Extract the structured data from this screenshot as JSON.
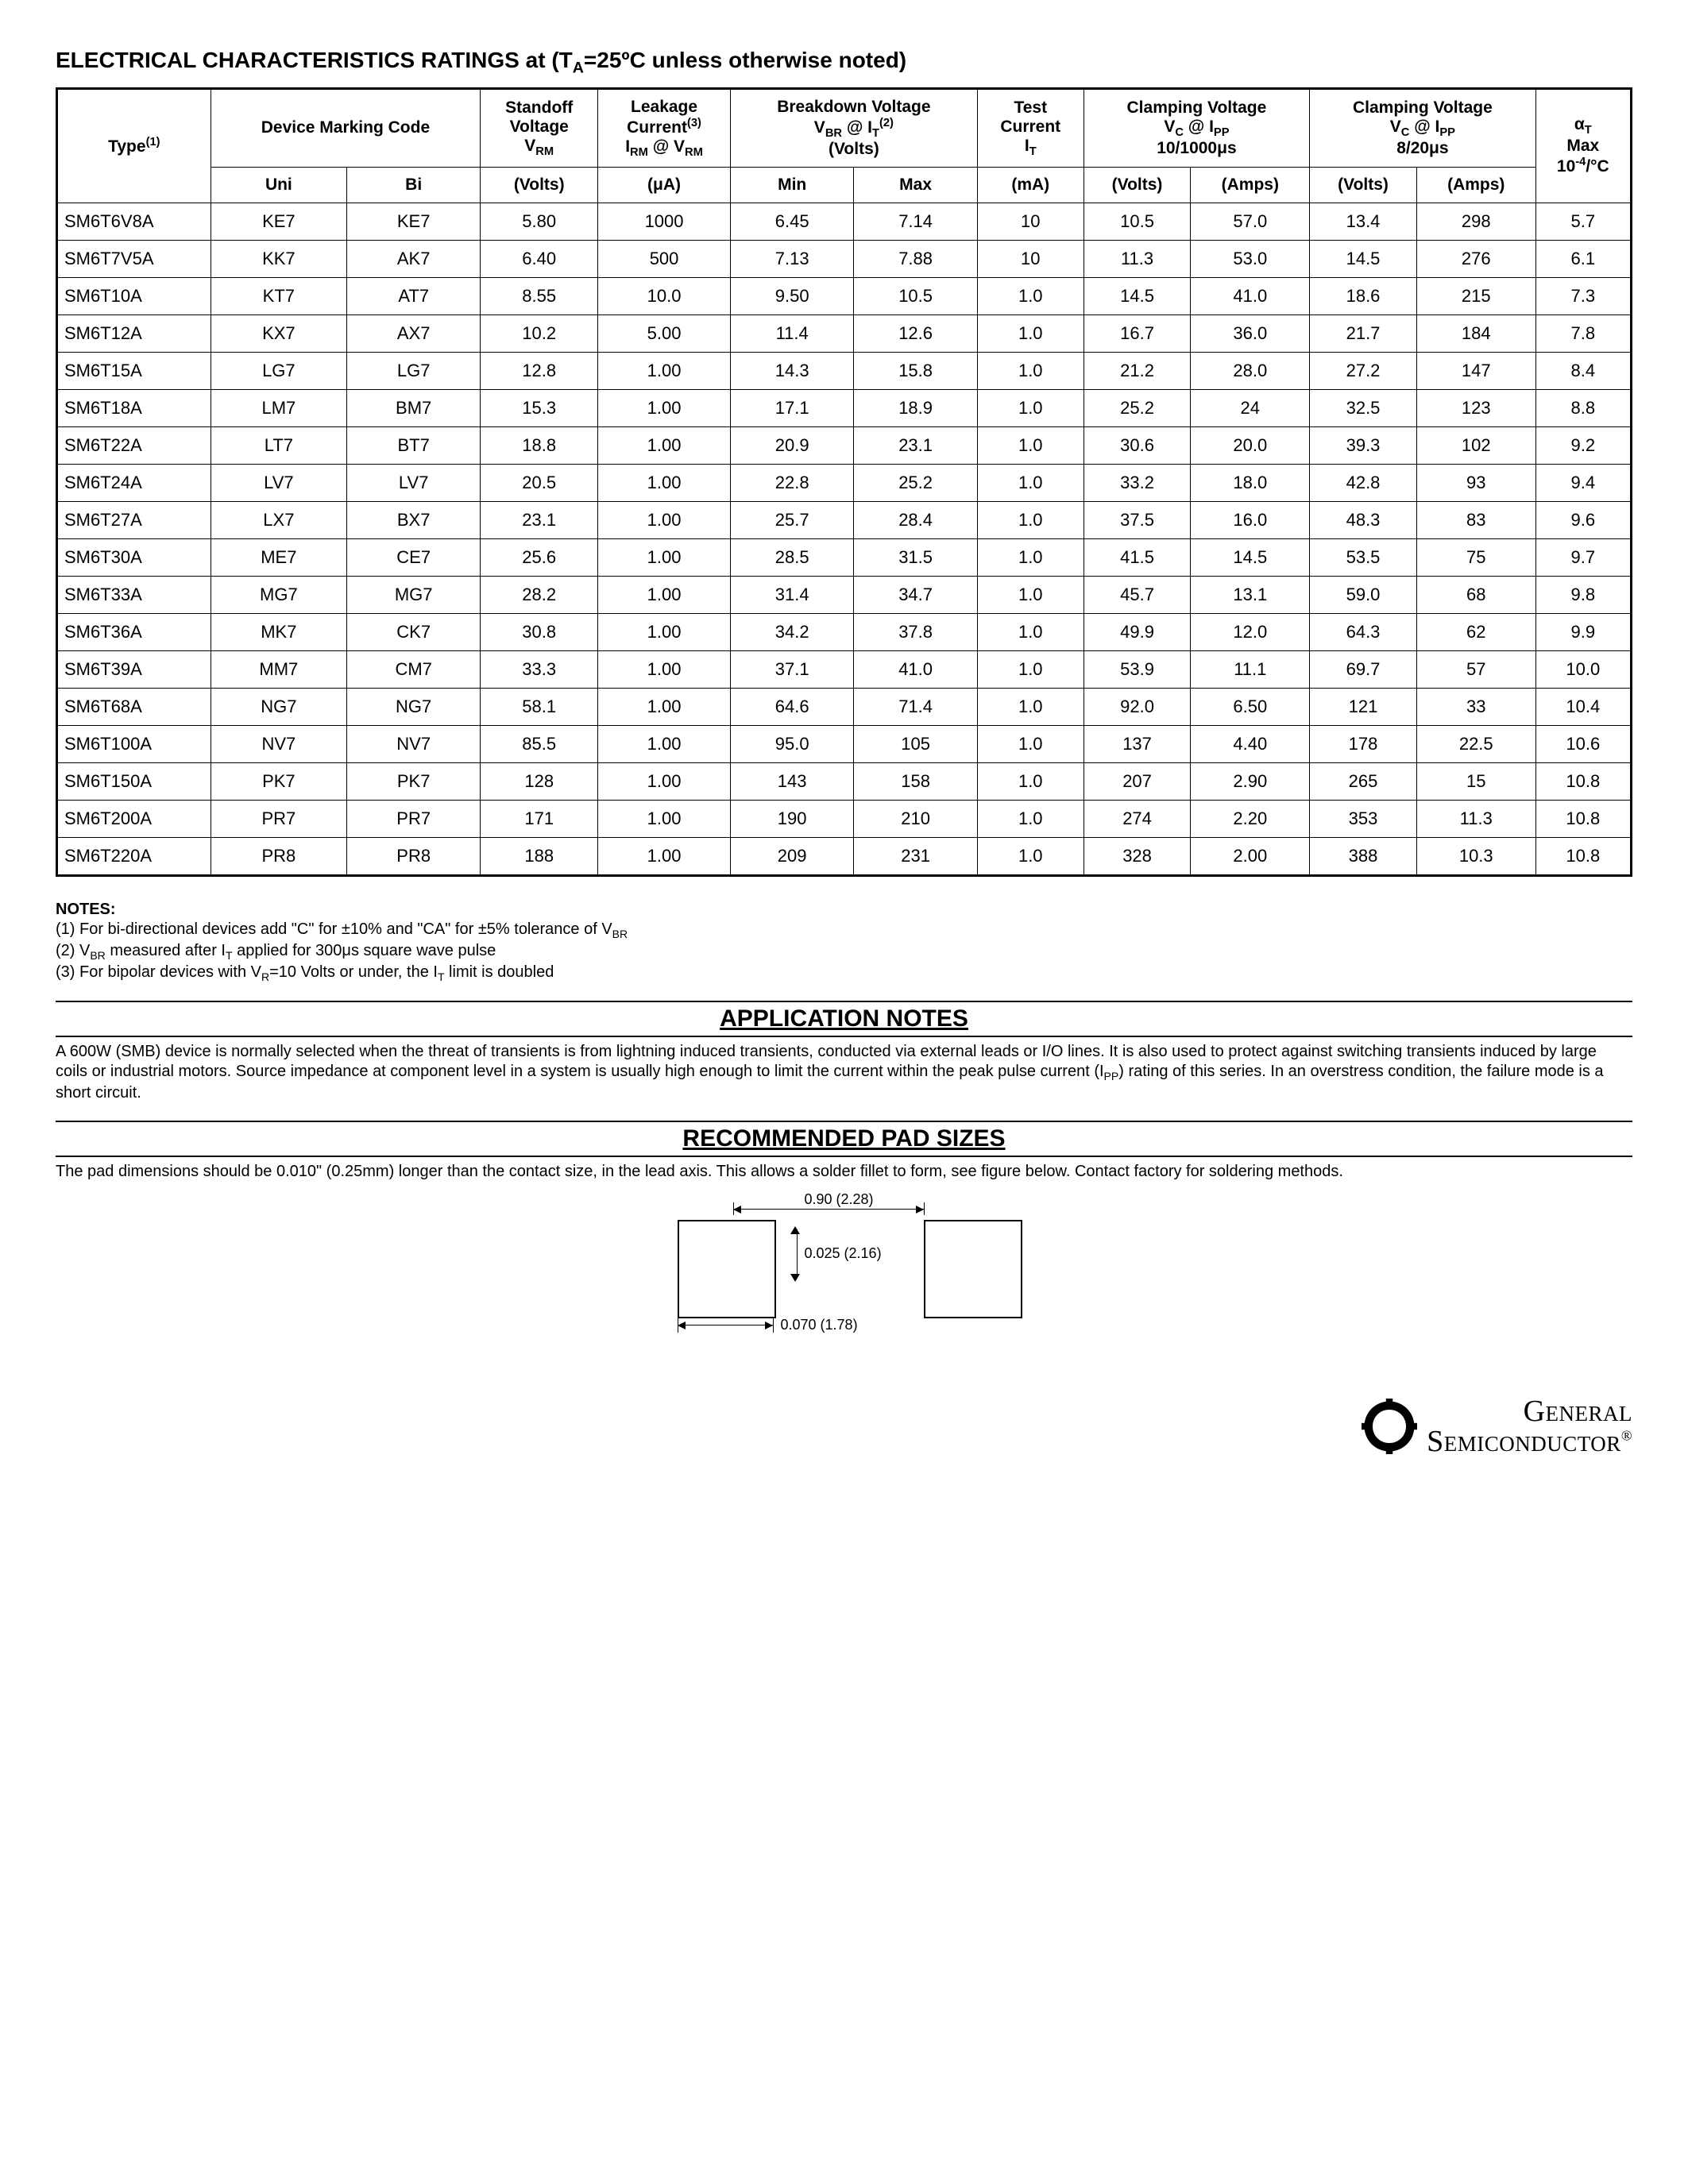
{
  "title_prefix": "ELECTRICAL CHARACTERISTICS RATINGS at (T",
  "title_sub": "A",
  "title_suffix": "=25ºC unless otherwise noted)",
  "headers": {
    "type": "Type",
    "type_sup": "(1)",
    "marking": "Device Marking Code",
    "standoff_l1": "Standoff",
    "standoff_l2": "Voltage",
    "standoff_l3_pre": "V",
    "standoff_l3_sub": "RM",
    "leakage_l1": "Leakage",
    "leakage_l2_pre": "Current",
    "leakage_l2_sup": "(3)",
    "leakage_l3_pre": "I",
    "leakage_l3_sub1": "RM",
    "leakage_l3_mid": " @ V",
    "leakage_l3_sub2": "RM",
    "breakdown_l1": "Breakdown Voltage",
    "breakdown_l2_pre": "V",
    "breakdown_l2_sub1": "BR",
    "breakdown_l2_mid": " @ I",
    "breakdown_l2_sub2": "T",
    "breakdown_l2_sup": "(2)",
    "breakdown_l3": "(Volts)",
    "test_l1": "Test",
    "test_l2": "Current",
    "test_l3_pre": "I",
    "test_l3_sub": "T",
    "clamp1_l1": "Clamping Voltage",
    "clamp1_l2_pre": "V",
    "clamp1_l2_sub1": "C",
    "clamp1_l2_mid": " @ I",
    "clamp1_l2_sub2": "PP",
    "clamp1_l3": "10/1000μs",
    "clamp2_l1": "Clamping Voltage",
    "clamp2_l2_pre": "V",
    "clamp2_l2_sub1": "C",
    "clamp2_l2_mid": " @ I",
    "clamp2_l2_sub2": "PP",
    "clamp2_l3": "8/20μs",
    "alpha_pre": "α",
    "alpha_sub": "T",
    "alpha_l2": "Max",
    "alpha_l3_pre": "10",
    "alpha_l3_sup": "-4",
    "alpha_l3_post": "/°C",
    "uni": "Uni",
    "bi": "Bi",
    "volts": "(Volts)",
    "uA": "(μA)",
    "min": "Min",
    "max": "Max",
    "mA": "(mA)",
    "amps": "(Amps)"
  },
  "rows": [
    {
      "type": "SM6T6V8A",
      "uni": "KE7",
      "bi": "KE7",
      "vrm": "5.80",
      "irm": "1000",
      "bmin": "6.45",
      "bmax": "7.14",
      "it": "10",
      "c1v": "10.5",
      "c1a": "57.0",
      "c2v": "13.4",
      "c2a": "298",
      "at": "5.7"
    },
    {
      "type": "SM6T7V5A",
      "uni": "KK7",
      "bi": "AK7",
      "vrm": "6.40",
      "irm": "500",
      "bmin": "7.13",
      "bmax": "7.88",
      "it": "10",
      "c1v": "11.3",
      "c1a": "53.0",
      "c2v": "14.5",
      "c2a": "276",
      "at": "6.1"
    },
    {
      "type": "SM6T10A",
      "uni": "KT7",
      "bi": "AT7",
      "vrm": "8.55",
      "irm": "10.0",
      "bmin": "9.50",
      "bmax": "10.5",
      "it": "1.0",
      "c1v": "14.5",
      "c1a": "41.0",
      "c2v": "18.6",
      "c2a": "215",
      "at": "7.3"
    },
    {
      "type": "SM6T12A",
      "uni": "KX7",
      "bi": "AX7",
      "vrm": "10.2",
      "irm": "5.00",
      "bmin": "11.4",
      "bmax": "12.6",
      "it": "1.0",
      "c1v": "16.7",
      "c1a": "36.0",
      "c2v": "21.7",
      "c2a": "184",
      "at": "7.8"
    },
    {
      "type": "SM6T15A",
      "uni": "LG7",
      "bi": "LG7",
      "vrm": "12.8",
      "irm": "1.00",
      "bmin": "14.3",
      "bmax": "15.8",
      "it": "1.0",
      "c1v": "21.2",
      "c1a": "28.0",
      "c2v": "27.2",
      "c2a": "147",
      "at": "8.4"
    },
    {
      "type": "SM6T18A",
      "uni": "LM7",
      "bi": "BM7",
      "vrm": "15.3",
      "irm": "1.00",
      "bmin": "17.1",
      "bmax": "18.9",
      "it": "1.0",
      "c1v": "25.2",
      "c1a": "24",
      "c2v": "32.5",
      "c2a": "123",
      "at": "8.8"
    },
    {
      "type": "SM6T22A",
      "uni": "LT7",
      "bi": "BT7",
      "vrm": "18.8",
      "irm": "1.00",
      "bmin": "20.9",
      "bmax": "23.1",
      "it": "1.0",
      "c1v": "30.6",
      "c1a": "20.0",
      "c2v": "39.3",
      "c2a": "102",
      "at": "9.2"
    },
    {
      "type": "SM6T24A",
      "uni": "LV7",
      "bi": "LV7",
      "vrm": "20.5",
      "irm": "1.00",
      "bmin": "22.8",
      "bmax": "25.2",
      "it": "1.0",
      "c1v": "33.2",
      "c1a": "18.0",
      "c2v": "42.8",
      "c2a": "93",
      "at": "9.4"
    },
    {
      "type": "SM6T27A",
      "uni": "LX7",
      "bi": "BX7",
      "vrm": "23.1",
      "irm": "1.00",
      "bmin": "25.7",
      "bmax": "28.4",
      "it": "1.0",
      "c1v": "37.5",
      "c1a": "16.0",
      "c2v": "48.3",
      "c2a": "83",
      "at": "9.6"
    },
    {
      "type": "SM6T30A",
      "uni": "ME7",
      "bi": "CE7",
      "vrm": "25.6",
      "irm": "1.00",
      "bmin": "28.5",
      "bmax": "31.5",
      "it": "1.0",
      "c1v": "41.5",
      "c1a": "14.5",
      "c2v": "53.5",
      "c2a": "75",
      "at": "9.7"
    },
    {
      "type": "SM6T33A",
      "uni": "MG7",
      "bi": "MG7",
      "vrm": "28.2",
      "irm": "1.00",
      "bmin": "31.4",
      "bmax": "34.7",
      "it": "1.0",
      "c1v": "45.7",
      "c1a": "13.1",
      "c2v": "59.0",
      "c2a": "68",
      "at": "9.8"
    },
    {
      "type": "SM6T36A",
      "uni": "MK7",
      "bi": "CK7",
      "vrm": "30.8",
      "irm": "1.00",
      "bmin": "34.2",
      "bmax": "37.8",
      "it": "1.0",
      "c1v": "49.9",
      "c1a": "12.0",
      "c2v": "64.3",
      "c2a": "62",
      "at": "9.9"
    },
    {
      "type": "SM6T39A",
      "uni": "MM7",
      "bi": "CM7",
      "vrm": "33.3",
      "irm": "1.00",
      "bmin": "37.1",
      "bmax": "41.0",
      "it": "1.0",
      "c1v": "53.9",
      "c1a": "11.1",
      "c2v": "69.7",
      "c2a": "57",
      "at": "10.0"
    },
    {
      "type": "SM6T68A",
      "uni": "NG7",
      "bi": "NG7",
      "vrm": "58.1",
      "irm": "1.00",
      "bmin": "64.6",
      "bmax": "71.4",
      "it": "1.0",
      "c1v": "92.0",
      "c1a": "6.50",
      "c2v": "121",
      "c2a": "33",
      "at": "10.4"
    },
    {
      "type": "SM6T100A",
      "uni": "NV7",
      "bi": "NV7",
      "vrm": "85.5",
      "irm": "1.00",
      "bmin": "95.0",
      "bmax": "105",
      "it": "1.0",
      "c1v": "137",
      "c1a": "4.40",
      "c2v": "178",
      "c2a": "22.5",
      "at": "10.6"
    },
    {
      "type": "SM6T150A",
      "uni": "PK7",
      "bi": "PK7",
      "vrm": "128",
      "irm": "1.00",
      "bmin": "143",
      "bmax": "158",
      "it": "1.0",
      "c1v": "207",
      "c1a": "2.90",
      "c2v": "265",
      "c2a": "15",
      "at": "10.8"
    },
    {
      "type": "SM6T200A",
      "uni": "PR7",
      "bi": "PR7",
      "vrm": "171",
      "irm": "1.00",
      "bmin": "190",
      "bmax": "210",
      "it": "1.0",
      "c1v": "274",
      "c1a": "2.20",
      "c2v": "353",
      "c2a": "11.3",
      "at": "10.8"
    },
    {
      "type": "SM6T220A",
      "uni": "PR8",
      "bi": "PR8",
      "vrm": "188",
      "irm": "1.00",
      "bmin": "209",
      "bmax": "231",
      "it": "1.0",
      "c1v": "328",
      "c1a": "2.00",
      "c2v": "388",
      "c2a": "10.3",
      "at": "10.8"
    }
  ],
  "notes": {
    "title": "NOTES:",
    "n1_pre": "(1) For bi-directional devices add \"C\" for ±10% and \"CA\" for ±5% tolerance of V",
    "n1_sub": "BR",
    "n2_pre": "(2) V",
    "n2_sub1": "BR",
    "n2_mid": " measured after I",
    "n2_sub2": "T",
    "n2_post": " applied for 300μs square wave pulse",
    "n3_pre": "(3) For bipolar devices with V",
    "n3_sub1": "R",
    "n3_mid": "=10 Volts or under, the I",
    "n3_sub2": "T",
    "n3_post": " limit is doubled"
  },
  "app": {
    "title": "APPLICATION NOTES",
    "body_pre": "A 600W (SMB) device is normally selected when the threat of transients is from lightning induced transients, conducted via external leads or I/O lines. It is also used to protect against switching transients induced by large coils or industrial motors. Source impedance at component level in a system is usually high enough to limit the current within the peak pulse current (I",
    "body_sub": "PP",
    "body_post": ") rating of this series. In an overstress condition, the failure mode is a short circuit."
  },
  "pad": {
    "title": "RECOMMENDED PAD SIZES",
    "body": "The pad dimensions should be 0.010\" (0.25mm) longer than the contact size, in the lead axis. This allows a solder fillet to form, see figure below. Contact factory for soldering methods.",
    "dim_top": "0.90 (2.28)",
    "dim_mid": "0.025 (2.16)",
    "dim_bot": "0.070 (1.78)"
  },
  "logo": {
    "line1": "General",
    "line2": "Semiconductor",
    "reg": "®"
  }
}
